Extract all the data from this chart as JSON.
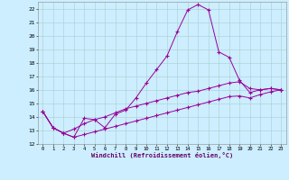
{
  "xlabel": "Windchill (Refroidissement éolien,°C)",
  "background_color": "#cceeff",
  "grid_color": "#aacccc",
  "line_color": "#990099",
  "xlim": [
    -0.5,
    23.5
  ],
  "ylim": [
    12,
    22.5
  ],
  "xticks": [
    0,
    1,
    2,
    3,
    4,
    5,
    6,
    7,
    8,
    9,
    10,
    11,
    12,
    13,
    14,
    15,
    16,
    17,
    18,
    19,
    20,
    21,
    22,
    23
  ],
  "yticks": [
    12,
    13,
    14,
    15,
    16,
    17,
    18,
    19,
    20,
    21,
    22
  ],
  "line1_x": [
    0,
    1,
    2,
    3,
    4,
    5,
    6,
    7,
    8,
    9,
    10,
    11,
    12,
    13,
    14,
    15,
    16,
    17,
    18,
    19,
    20,
    21,
    22,
    23
  ],
  "line1_y": [
    14.4,
    13.2,
    12.8,
    12.5,
    13.9,
    13.8,
    13.2,
    14.2,
    14.5,
    15.4,
    16.5,
    17.5,
    18.5,
    20.3,
    21.9,
    22.3,
    21.9,
    18.8,
    18.4,
    16.7,
    15.8,
    16.0,
    16.1,
    16.0
  ],
  "line2_x": [
    0,
    1,
    2,
    3,
    4,
    5,
    6,
    7,
    8,
    9,
    10,
    11,
    12,
    13,
    14,
    15,
    16,
    17,
    18,
    19,
    20,
    21,
    22,
    23
  ],
  "line2_y": [
    14.4,
    13.2,
    12.8,
    13.1,
    13.5,
    13.8,
    14.0,
    14.3,
    14.6,
    14.8,
    15.0,
    15.2,
    15.4,
    15.6,
    15.8,
    15.9,
    16.1,
    16.3,
    16.5,
    16.6,
    16.1,
    16.0,
    16.1,
    16.0
  ],
  "line3_x": [
    0,
    1,
    2,
    3,
    4,
    5,
    6,
    7,
    8,
    9,
    10,
    11,
    12,
    13,
    14,
    15,
    16,
    17,
    18,
    19,
    20,
    21,
    22,
    23
  ],
  "line3_y": [
    14.4,
    13.2,
    12.8,
    12.5,
    12.7,
    12.9,
    13.1,
    13.3,
    13.5,
    13.7,
    13.9,
    14.1,
    14.3,
    14.5,
    14.7,
    14.9,
    15.1,
    15.3,
    15.5,
    15.55,
    15.4,
    15.65,
    15.85,
    16.0
  ]
}
